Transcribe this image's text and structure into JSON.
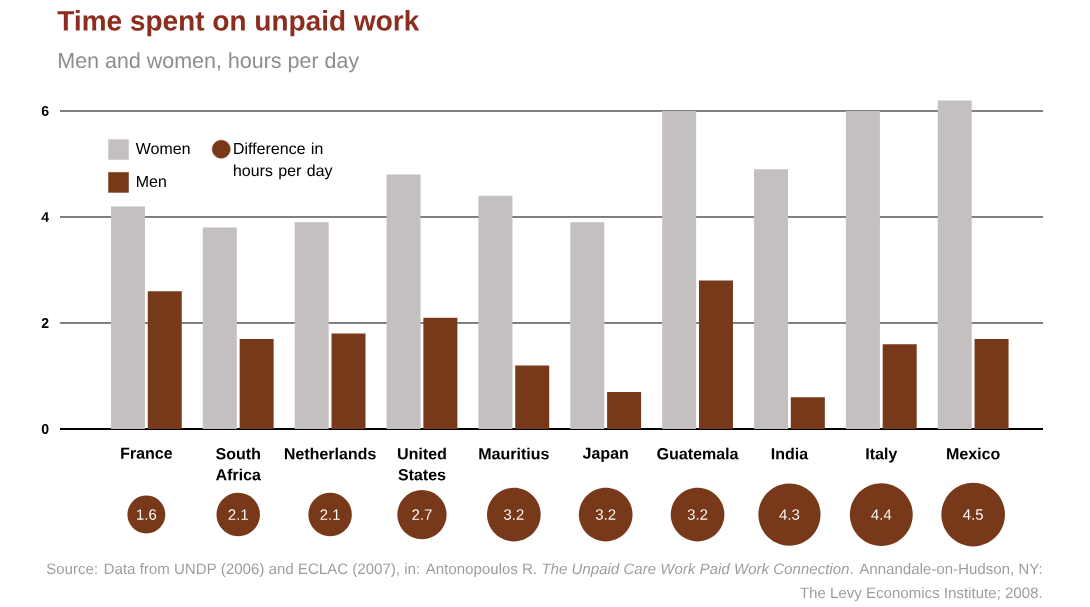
{
  "chart_data": [
    {
      "type": "bar",
      "title": "Time spent on unpaid work",
      "subtitle": "Men and women, hours per day",
      "categories": [
        "France",
        "South Africa",
        "Netherlands",
        "United States",
        "Mauritius",
        "Japan",
        "Guatemala",
        "India",
        "Italy",
        "Mexico"
      ],
      "series": [
        {
          "name": "Women",
          "color": "#c4c0bf",
          "values": [
            4.2,
            3.8,
            3.9,
            4.8,
            4.4,
            3.9,
            6.0,
            4.9,
            6.0,
            6.2
          ]
        },
        {
          "name": "Men",
          "color": "#78391a",
          "values": [
            2.6,
            1.7,
            1.8,
            2.1,
            1.2,
            0.7,
            2.8,
            0.6,
            1.6,
            1.7
          ]
        }
      ],
      "ylim": [
        0,
        6.2
      ],
      "yticks": [
        0,
        2,
        4,
        6
      ],
      "grid": "y",
      "legend": "top left",
      "annotations": [
        "Source: Data from UNDP (2006) and ECLAC (2007), in: Antonopoulos R. *The Unpaid Care Work Paid Work Connection*. Annandale-on-Hudson, NY: The Levy Economics Institute; 2008."
      ]
    },
    {
      "type": "other",
      "categories": [
        null,
        null,
        null,
        null,
        null,
        null,
        null,
        null,
        null,
        null
      ],
      "series": [
        {
          "name": "Difference in hours per day",
          "color": "#78391a",
          "values": [
            1.6,
            2.1,
            2.1,
            2.7,
            3.2,
            3.2,
            3.2,
            4.3,
            4.4,
            4.5
          ]
        }
      ],
      "data_labels": true,
      "legend": "top left"
    }
  ]
}
